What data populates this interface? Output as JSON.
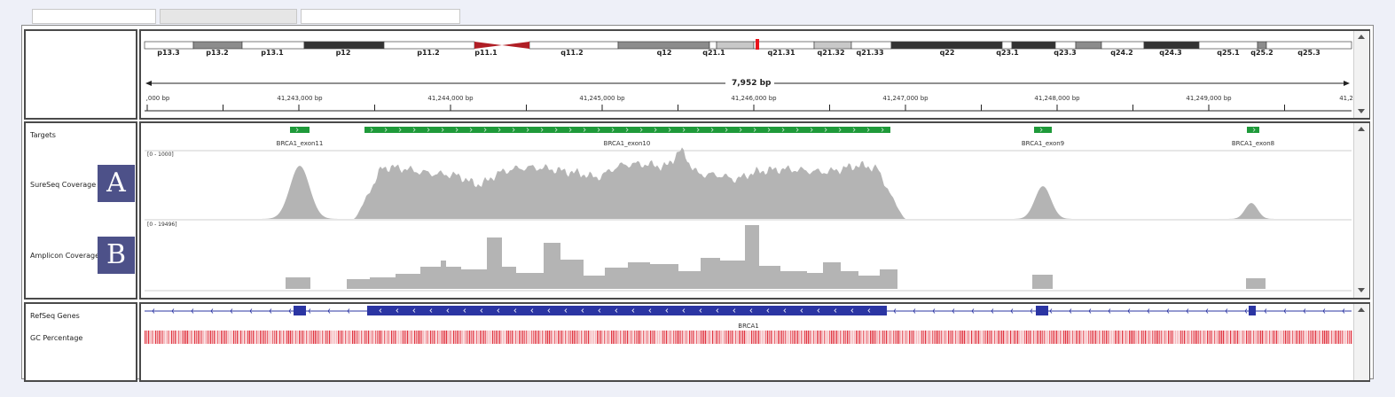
{
  "colors": {
    "target_green": "#1f9a3a",
    "coverage_gray": "#b4b4b4",
    "refseq_blue": "#2b35a3",
    "gc_red": "#e0333f",
    "centromere_red": "#b01e25",
    "badge": "#4d5189"
  },
  "ideogram": {
    "bands": [
      "p13.3",
      "p13.2",
      "p13.1",
      "p12",
      "p11.2",
      "p11.1",
      "q11.2",
      "q12",
      "q21.1",
      "q21.31",
      "q21.32",
      "q21.33",
      "q22",
      "q23.1",
      "q23.3",
      "q24.2",
      "q24.3",
      "q25.1",
      "q25.2",
      "q25.3"
    ]
  },
  "ruler": {
    "span": "7,952 bp",
    "ticks": [
      ",000 bp",
      "41,243,000 bp",
      "41,244,000 bp",
      "41,245,000 bp",
      "41,246,000 bp",
      "41,247,000 bp",
      "41,248,000 bp",
      "41,249,000 bp",
      "41,2"
    ]
  },
  "tracks": {
    "targets": "Targets",
    "sureseq": "SureSeq Coverage",
    "amplicon": "Amplicon Coverage",
    "refseq": "RefSeq Genes",
    "gc": "GC Percentage"
  },
  "badges": {
    "a": "A",
    "b": "B"
  },
  "targets": {
    "labels": [
      "BRCA1_exon11",
      "BRCA1_exon10",
      "BRCA1_exon9",
      "BRCA1_exon8"
    ]
  },
  "coverage": {
    "sureseq_range": "[0 - 1000]",
    "amplicon_range": "[0 - 19496]"
  },
  "gene": {
    "name": "BRCA1"
  }
}
